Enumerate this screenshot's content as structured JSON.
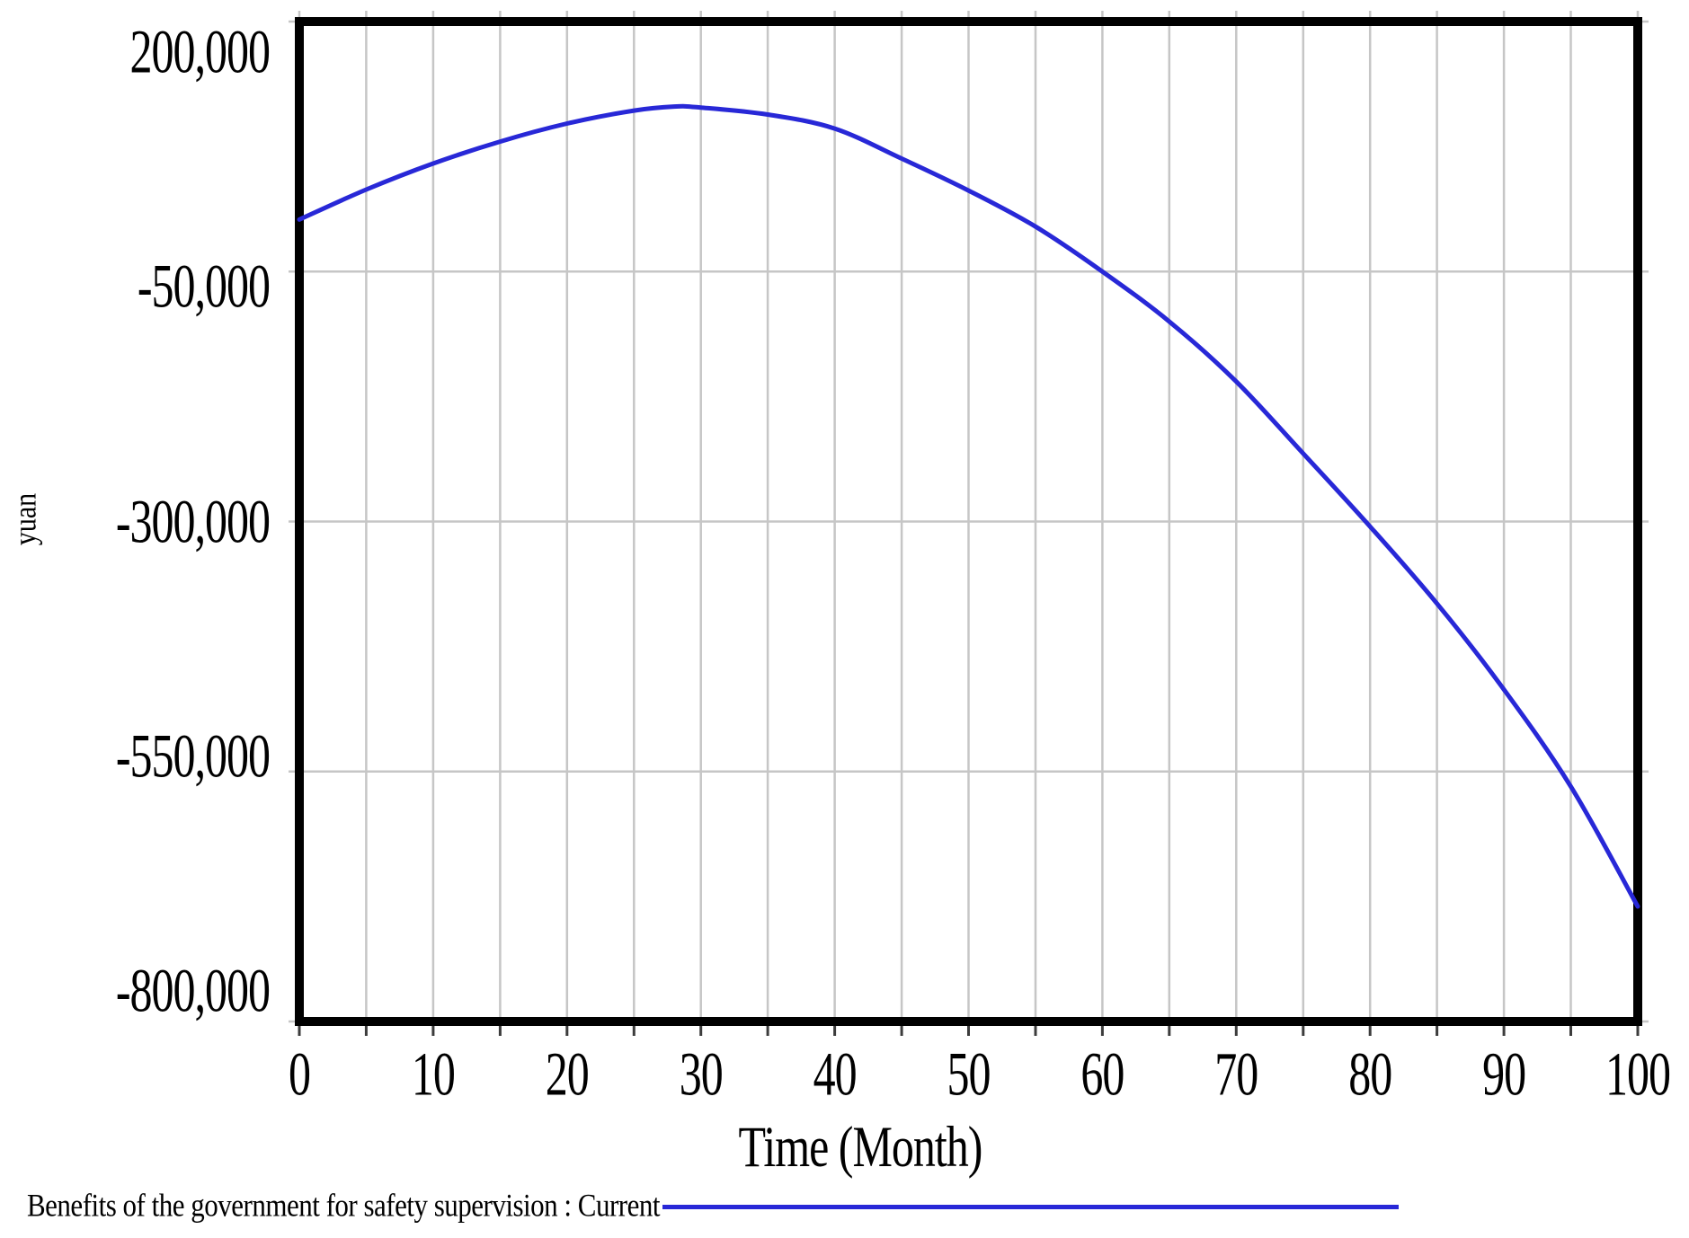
{
  "chart_data": {
    "type": "line",
    "title": "",
    "xlabel": "Time (Month)",
    "ylabel": "yuan",
    "xlim": [
      0,
      100
    ],
    "ylim": [
      -800000,
      200000
    ],
    "x_ticks": [
      0,
      10,
      20,
      30,
      40,
      50,
      60,
      70,
      80,
      90,
      100
    ],
    "x_grid_step": 5,
    "y_ticks": [
      200000,
      -50000,
      -300000,
      -550000,
      -800000
    ],
    "y_tick_labels": [
      "200,000",
      "-50,000",
      "-300,000",
      "-550,000",
      "-800,000"
    ],
    "grid": true,
    "legend_position": "bottom-left",
    "series": [
      {
        "name": "Benefits of the government for safety supervision : Current",
        "color": "#2828d7",
        "x": [
          0,
          5,
          10,
          15,
          20,
          25,
          28,
          30,
          35,
          40,
          45,
          50,
          55,
          60,
          65,
          70,
          75,
          80,
          85,
          90,
          95,
          100
        ],
        "y": [
          2000,
          32000,
          58000,
          80000,
          98000,
          111000,
          115000,
          114000,
          107000,
          93000,
          63000,
          31000,
          -5000,
          -50000,
          -100000,
          -160000,
          -232000,
          -305000,
          -382000,
          -468000,
          -565000,
          -685000
        ]
      }
    ]
  },
  "colors": {
    "line": "#2828d7",
    "grid": "#c6c6c6",
    "tick_dark": "#3c3c3c",
    "border": "#000000",
    "background": "#ffffff",
    "text": "#000000"
  }
}
